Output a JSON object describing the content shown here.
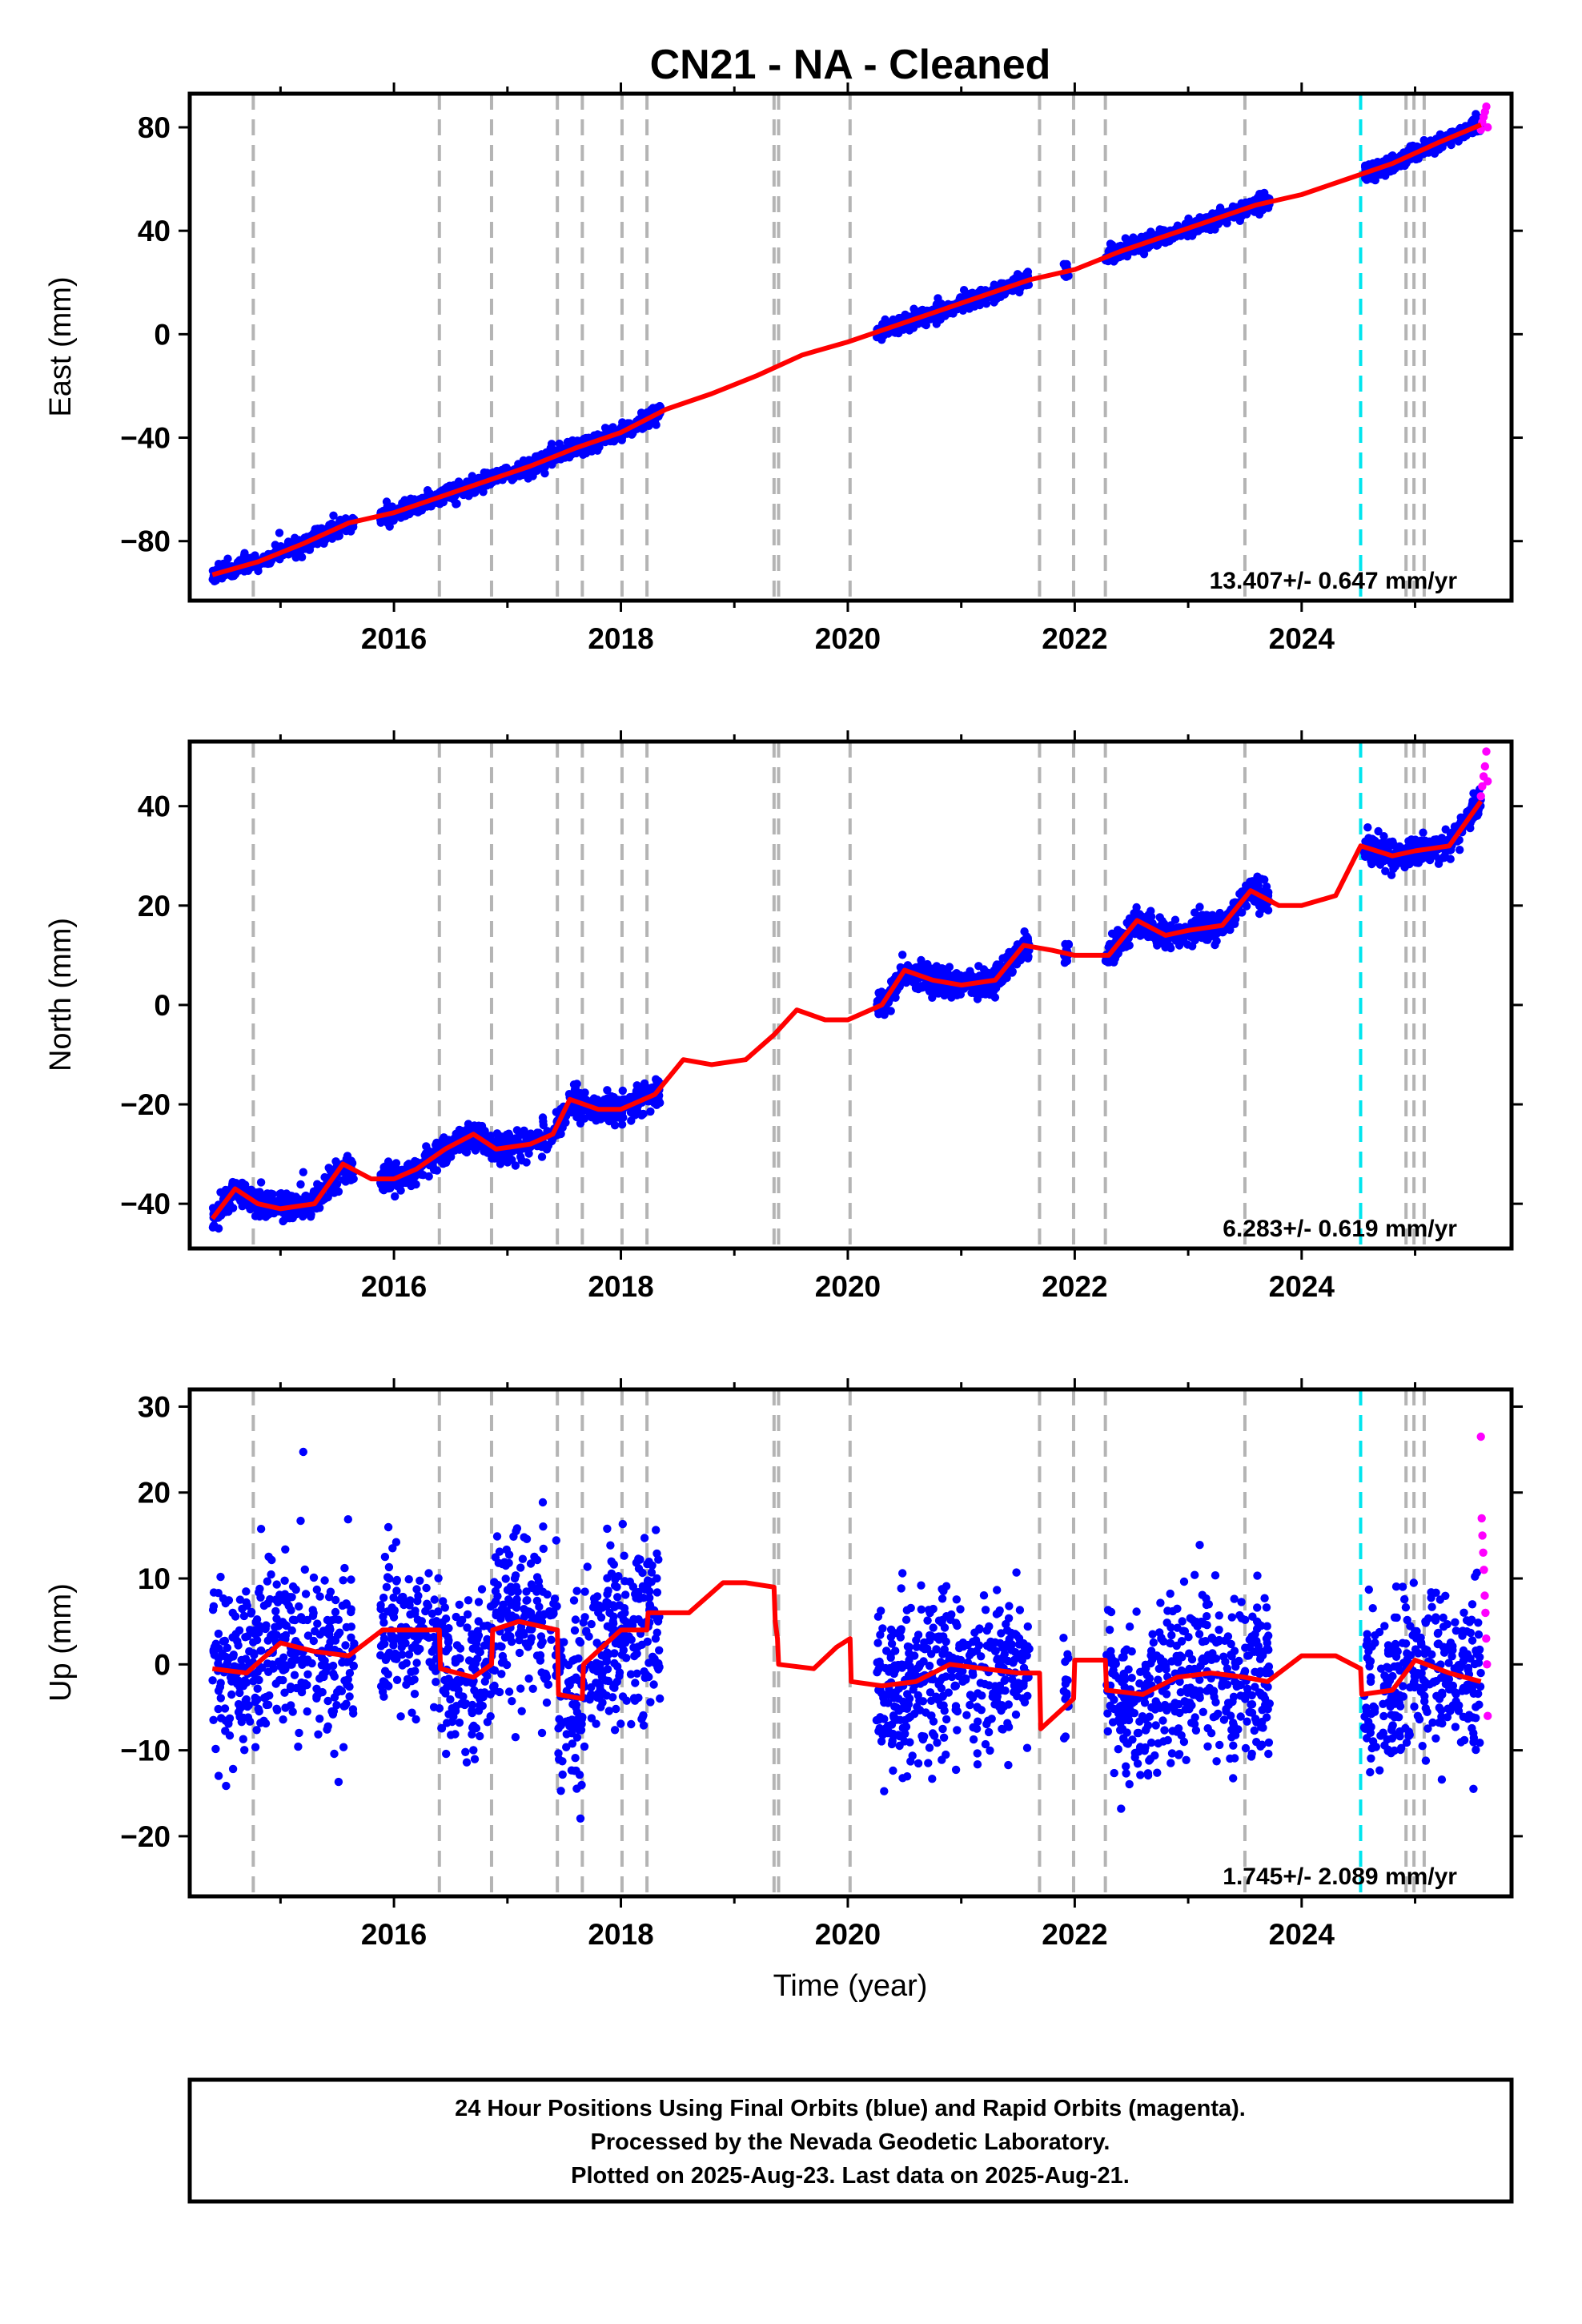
{
  "chart_data": [
    {
      "type": "scatter",
      "title": "CN21  - NA - Cleaned",
      "ylabel": "East (mm)",
      "xlabel": "",
      "rate_label": "13.407+/- 0.647 mm/yr",
      "xlim": [
        2014.2,
        2025.85
      ],
      "ylim": [
        -103,
        93
      ],
      "x_ticks": [
        2016,
        2018,
        2020,
        2022,
        2024
      ],
      "x_tick_labels": [
        "2016",
        "2018",
        "2020",
        "2022",
        "2024"
      ],
      "y_ticks": [
        -80,
        -40,
        0,
        40,
        80
      ],
      "y_tick_labels": [
        "−80",
        "−40",
        "0",
        "40",
        "80"
      ],
      "equipment_changes": [
        2014.76,
        2016.4,
        2016.86,
        2017.44,
        2017.66,
        2018.01,
        2018.23,
        2019.35,
        2019.39,
        2020.02,
        2021.69,
        2021.99,
        2022.27,
        2023.5
      ],
      "earthquake_events": [
        2024.52
      ],
      "late_events": [
        2024.92,
        2024.99,
        2025.08
      ],
      "data_segments": [
        [
          2014.4,
          2015.65
        ],
        [
          2015.88,
          2018.35
        ],
        [
          2020.25,
          2021.6
        ],
        [
          2021.9,
          2021.95
        ],
        [
          2022.27,
          2023.72
        ],
        [
          2024.55,
          2025.58
        ]
      ],
      "series": [
        {
          "name": "Final Orbits (blue)",
          "color": "#0000ff",
          "model_x": [
            2014.4,
            2014.8,
            2015.2,
            2015.6,
            2016.0,
            2016.4,
            2016.8,
            2017.2,
            2017.6,
            2018.0,
            2018.4,
            2018.8,
            2019.2,
            2019.6,
            2020.0,
            2020.4,
            2020.8,
            2021.2,
            2021.6,
            2022.0,
            2022.4,
            2022.8,
            2023.2,
            2023.6,
            2024.0,
            2024.4,
            2024.8,
            2025.2,
            2025.58
          ],
          "model_y": [
            -93,
            -88,
            -81,
            -73,
            -69,
            -63,
            -57,
            -51,
            -44,
            -38,
            -29,
            -23,
            -16,
            -8,
            -3,
            3,
            9,
            15,
            21,
            25,
            32,
            38,
            44,
            50,
            54,
            60,
            66,
            74,
            81
          ],
          "scatter_sd": 1.5,
          "outlier_sd": 1.5,
          "points_per_year": 320
        },
        {
          "name": "Rapid Orbits (magenta)",
          "color": "#ff00ff",
          "x_range": [
            2025.58,
            2025.64
          ],
          "y": [
            79,
            82,
            84,
            86,
            88,
            80
          ]
        }
      ],
      "model": {
        "color": "#ff0000"
      }
    },
    {
      "type": "scatter",
      "title": "",
      "ylabel": "North (mm)",
      "xlabel": "",
      "rate_label": "6.283+/- 0.619 mm/yr",
      "xlim": [
        2014.2,
        2025.85
      ],
      "ylim": [
        -49,
        53
      ],
      "x_ticks": [
        2016,
        2018,
        2020,
        2022,
        2024
      ],
      "x_tick_labels": [
        "2016",
        "2018",
        "2020",
        "2022",
        "2024"
      ],
      "y_ticks": [
        -40,
        -20,
        0,
        20,
        40
      ],
      "y_tick_labels": [
        "−40",
        "−20",
        "0",
        "20",
        "40"
      ],
      "equipment_changes": [
        2014.76,
        2016.4,
        2016.86,
        2017.44,
        2017.66,
        2018.01,
        2018.23,
        2019.35,
        2019.39,
        2020.02,
        2021.69,
        2021.99,
        2022.27,
        2023.5
      ],
      "earthquake_events": [
        2024.52
      ],
      "late_events": [
        2024.92,
        2024.99,
        2025.08
      ],
      "data_segments": [
        [
          2014.4,
          2015.65
        ],
        [
          2015.88,
          2018.35
        ],
        [
          2020.25,
          2021.6
        ],
        [
          2021.9,
          2021.95
        ],
        [
          2022.27,
          2023.72
        ],
        [
          2024.55,
          2025.58
        ]
      ],
      "series": [
        {
          "name": "Final Orbits (blue)",
          "color": "#0000ff",
          "model_x": [
            2014.4,
            2014.6,
            2014.8,
            2015.0,
            2015.3,
            2015.55,
            2015.8,
            2016.0,
            2016.2,
            2016.45,
            2016.7,
            2016.9,
            2017.2,
            2017.4,
            2017.55,
            2017.8,
            2018.0,
            2018.3,
            2018.55,
            2018.8,
            2019.1,
            2019.35,
            2019.55,
            2019.8,
            2020.0,
            2020.3,
            2020.5,
            2020.75,
            2021.0,
            2021.3,
            2021.55,
            2021.8,
            2022.0,
            2022.3,
            2022.55,
            2022.8,
            2023.0,
            2023.3,
            2023.55,
            2023.8,
            2024.0,
            2024.3,
            2024.52,
            2024.8,
            2025.0,
            2025.3,
            2025.58
          ],
          "model_y": [
            -43,
            -37,
            -40,
            -41,
            -40,
            -32,
            -35,
            -35,
            -33,
            -29,
            -26,
            -29,
            -28,
            -26,
            -19,
            -21,
            -21,
            -18,
            -11,
            -12,
            -11,
            -6,
            -1,
            -3,
            -3,
            0,
            7,
            5,
            4,
            5,
            12,
            11,
            10,
            10,
            17,
            14,
            15,
            16,
            23,
            20,
            20,
            22,
            32,
            30,
            31,
            32,
            41
          ],
          "scatter_sd": 1.4,
          "outlier_sd": 1.4,
          "points_per_year": 320
        },
        {
          "name": "Rapid Orbits (magenta)",
          "color": "#ff00ff",
          "x_range": [
            2025.58,
            2025.64
          ],
          "y": [
            42,
            44,
            46,
            48,
            51,
            45
          ]
        }
      ],
      "model": {
        "color": "#ff0000"
      }
    },
    {
      "type": "scatter",
      "title": "",
      "ylabel": "Up (mm)",
      "xlabel": "Time (year)",
      "rate_label": "1.745+/- 2.089 mm/yr",
      "xlim": [
        2014.2,
        2025.85
      ],
      "ylim": [
        -27,
        32
      ],
      "x_ticks": [
        2016,
        2018,
        2020,
        2022,
        2024
      ],
      "x_tick_labels": [
        "2016",
        "2018",
        "2020",
        "2022",
        "2024"
      ],
      "y_ticks": [
        -20,
        -10,
        0,
        10,
        20,
        30
      ],
      "y_tick_labels": [
        "−20",
        "−10",
        "0",
        "10",
        "20",
        "30"
      ],
      "equipment_changes": [
        2014.76,
        2016.4,
        2016.86,
        2017.44,
        2017.66,
        2018.01,
        2018.23,
        2019.35,
        2019.39,
        2020.02,
        2021.69,
        2021.99,
        2022.27,
        2023.5
      ],
      "earthquake_events": [
        2024.52
      ],
      "late_events": [
        2024.92,
        2024.99,
        2025.08
      ],
      "data_segments": [
        [
          2014.4,
          2015.65
        ],
        [
          2015.88,
          2018.35
        ],
        [
          2020.25,
          2021.6
        ],
        [
          2021.9,
          2021.95
        ],
        [
          2022.27,
          2023.72
        ],
        [
          2024.55,
          2025.58
        ]
      ],
      "series": [
        {
          "name": "Final Orbits (blue)",
          "color": "#0000ff",
          "model_x": [
            2014.4,
            2014.7,
            2015.0,
            2015.3,
            2015.6,
            2015.9,
            2016.2,
            2016.4,
            2016.41,
            2016.7,
            2016.86,
            2016.87,
            2017.1,
            2017.44,
            2017.45,
            2017.66,
            2017.67,
            2018.0,
            2018.23,
            2018.24,
            2018.6,
            2018.9,
            2019.1,
            2019.35,
            2019.36,
            2019.38,
            2019.39,
            2019.7,
            2019.9,
            2020.02,
            2020.03,
            2020.3,
            2020.6,
            2020.9,
            2021.2,
            2021.5,
            2021.69,
            2021.7,
            2021.99,
            2022.0,
            2022.27,
            2022.28,
            2022.6,
            2022.9,
            2023.2,
            2023.5,
            2023.7,
            2024.0,
            2024.3,
            2024.52,
            2024.53,
            2024.8,
            2025.0,
            2025.3,
            2025.58
          ],
          "model_y": [
            -0.5,
            -1,
            2.5,
            1.5,
            1,
            4,
            4,
            4,
            -0.5,
            -1.5,
            0,
            4,
            5,
            4,
            -3.5,
            -4,
            0,
            4,
            4,
            6,
            6,
            9.5,
            9.5,
            9,
            5,
            3,
            0,
            -0.5,
            2,
            3,
            -2,
            -2.5,
            -2,
            0,
            -0.5,
            -1,
            -1,
            -7.5,
            -4,
            0.5,
            0.5,
            -3,
            -3.5,
            -1.5,
            -1,
            -1.5,
            -2,
            1,
            1,
            -0.5,
            -3.5,
            -3,
            0.5,
            -1,
            -2
          ],
          "scatter_sd": 4.8,
          "outlier_sd": 4.8,
          "points_per_year": 300
        },
        {
          "name": "Rapid Orbits (magenta)",
          "color": "#ff00ff",
          "x_range": [
            2025.58,
            2025.64
          ],
          "y": [
            26.5,
            17,
            15,
            13,
            11,
            8,
            6,
            3,
            0,
            -6
          ]
        }
      ],
      "model": {
        "color": "#ff0000"
      }
    }
  ],
  "footer": {
    "line1": "24 Hour Positions Using Final Orbits (blue) and Rapid Orbits (magenta).",
    "line2": "Processed by the Nevada Geodetic Laboratory.",
    "line3": "Plotted on 2025-Aug-23. Last data on 2025-Aug-21."
  }
}
